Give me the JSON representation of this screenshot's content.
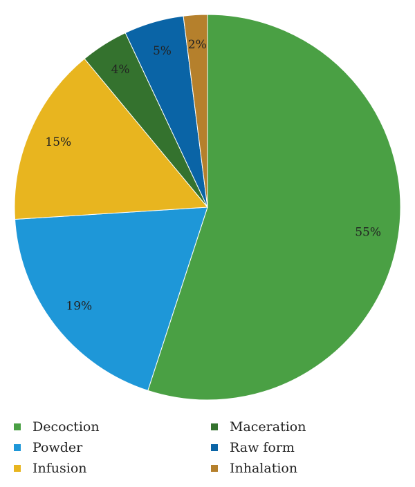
{
  "chart_data": {
    "type": "pie",
    "title": "",
    "unit": "%",
    "slices": [
      {
        "name": "Decoction",
        "value": 55,
        "label": "55%",
        "color": "#4aa044"
      },
      {
        "name": "Powder",
        "value": 19,
        "label": "19%",
        "color": "#1e97d8"
      },
      {
        "name": "Infusion",
        "value": 15,
        "label": "15%",
        "color": "#e8b51f"
      },
      {
        "name": "Maceration",
        "value": 4,
        "label": "4%",
        "color": "#34722e"
      },
      {
        "name": "Raw form",
        "value": 5,
        "label": "5%",
        "color": "#0a64a6"
      },
      {
        "name": "Inhalation",
        "value": 2,
        "label": "2%",
        "color": "#b5802c"
      }
    ],
    "legend_position": "bottom",
    "legend_order": [
      "Decoction",
      "Maceration",
      "Powder",
      "Raw form",
      "Infusion",
      "Inhalation"
    ]
  }
}
